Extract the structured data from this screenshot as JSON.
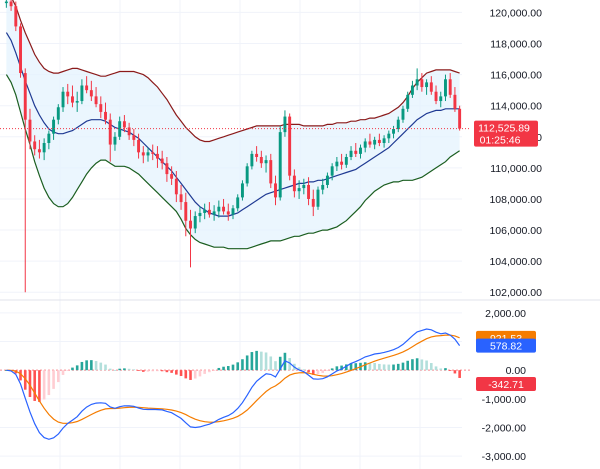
{
  "chart_data": [
    {
      "type": "candlestick",
      "title": "",
      "ylim": [
        101500,
        120800
      ],
      "y_ticks": [
        "120,000.00",
        "118,000.00",
        "116,000.00",
        "114,000.00",
        "112,000.00",
        "110,000.00",
        "108,000.00",
        "106,000.00",
        "104,000.00",
        "102,000.00"
      ],
      "y_tick_values": [
        120000,
        118000,
        116000,
        114000,
        112000,
        110000,
        108000,
        106000,
        104000,
        102000
      ],
      "last_price": 112525.89,
      "last_price_label": "112,525.89",
      "countdown_label": "01:25:46",
      "colors": {
        "up": "#089981",
        "down": "#f23645",
        "band_fill": "#e3f2fd",
        "upper_band": "#8b1a1a",
        "lower_band": "#1b5e20",
        "basis": "#1f3a93",
        "price_line": "#f23645"
      },
      "candles": [
        [
          120600,
          121000,
          120300,
          120700
        ],
        [
          120700,
          121000,
          120100,
          120400
        ],
        [
          120400,
          120700,
          118800,
          119100
        ],
        [
          119100,
          119300,
          115800,
          116100
        ],
        [
          116100,
          116400,
          102000,
          113100
        ],
        [
          113100,
          113800,
          111200,
          111700
        ],
        [
          111700,
          112100,
          110800,
          111200
        ],
        [
          111200,
          111800,
          110600,
          111000
        ],
        [
          111000,
          111900,
          110500,
          111600
        ],
        [
          111600,
          112400,
          111200,
          112200
        ],
        [
          112200,
          113300,
          111800,
          113100
        ],
        [
          113100,
          114100,
          112800,
          113900
        ],
        [
          113900,
          115200,
          113600,
          114900
        ],
        [
          114900,
          115400,
          114100,
          114600
        ],
        [
          114600,
          115300,
          113900,
          114200
        ],
        [
          114200,
          114900,
          113600,
          114300
        ],
        [
          114300,
          115700,
          114100,
          115300
        ],
        [
          115300,
          115900,
          114800,
          115000
        ],
        [
          115000,
          115600,
          114300,
          114600
        ],
        [
          114600,
          115200,
          113900,
          114100
        ],
        [
          114100,
          114600,
          113200,
          113600
        ],
        [
          113600,
          114200,
          112800,
          113100
        ],
        [
          113100,
          113500,
          110400,
          111500
        ],
        [
          111500,
          112300,
          111100,
          112000
        ],
        [
          112000,
          113300,
          111800,
          113000
        ],
        [
          113000,
          113400,
          112300,
          112600
        ],
        [
          112600,
          112900,
          111800,
          112100
        ],
        [
          112100,
          112500,
          111400,
          111800
        ],
        [
          111800,
          112200,
          110600,
          111000
        ],
        [
          111000,
          111400,
          110300,
          110800
        ],
        [
          110800,
          111300,
          110400,
          111000
        ],
        [
          111000,
          111500,
          110500,
          110900
        ],
        [
          110900,
          111400,
          110000,
          110600
        ],
        [
          110600,
          111100,
          109900,
          110300
        ],
        [
          110300,
          110700,
          109100,
          109600
        ],
        [
          109600,
          110100,
          108900,
          109300
        ],
        [
          109300,
          109800,
          107800,
          108300
        ],
        [
          108300,
          108900,
          107300,
          107800
        ],
        [
          107800,
          108400,
          105600,
          106600
        ],
        [
          106600,
          107300,
          103600,
          106100
        ],
        [
          106100,
          107200,
          105800,
          106900
        ],
        [
          106900,
          107500,
          106500,
          107100
        ],
        [
          107100,
          107700,
          106700,
          107300
        ],
        [
          107300,
          107800,
          106800,
          107000
        ],
        [
          107000,
          107600,
          106600,
          107200
        ],
        [
          107200,
          107900,
          106800,
          107500
        ],
        [
          107500,
          108000,
          107000,
          107200
        ],
        [
          107200,
          107700,
          106600,
          107000
        ],
        [
          107000,
          107600,
          106700,
          107400
        ],
        [
          107400,
          108300,
          107200,
          108100
        ],
        [
          108100,
          109200,
          107900,
          109000
        ],
        [
          109000,
          110300,
          108800,
          110100
        ],
        [
          110100,
          111100,
          109900,
          110900
        ],
        [
          110900,
          111400,
          110400,
          110700
        ],
        [
          110700,
          111100,
          110000,
          110300
        ],
        [
          110300,
          110800,
          109700,
          110500
        ],
        [
          110500,
          110900,
          108700,
          109000
        ],
        [
          109000,
          109500,
          107600,
          108100
        ],
        [
          108100,
          112700,
          107900,
          112300
        ],
        [
          112300,
          113700,
          112000,
          113300
        ],
        [
          113300,
          113500,
          109200,
          109500
        ],
        [
          109500,
          109900,
          108100,
          108500
        ],
        [
          108500,
          109200,
          108000,
          108700
        ],
        [
          108700,
          109300,
          108300,
          108900
        ],
        [
          108900,
          109400,
          107600,
          108000
        ],
        [
          108000,
          108600,
          106900,
          107500
        ],
        [
          107500,
          108800,
          107300,
          108600
        ],
        [
          108600,
          109300,
          108300,
          108900
        ],
        [
          108900,
          109700,
          108700,
          109500
        ],
        [
          109500,
          110300,
          109200,
          110100
        ],
        [
          110100,
          110700,
          109800,
          110400
        ],
        [
          110400,
          110900,
          109900,
          110200
        ],
        [
          110200,
          110900,
          110000,
          110700
        ],
        [
          110700,
          111400,
          110500,
          111100
        ],
        [
          111100,
          111600,
          110700,
          110900
        ],
        [
          110900,
          111500,
          110600,
          111300
        ],
        [
          111300,
          111900,
          111000,
          111700
        ],
        [
          111700,
          112200,
          111300,
          111500
        ],
        [
          111500,
          112000,
          111200,
          111800
        ],
        [
          111800,
          112200,
          111400,
          111600
        ],
        [
          111600,
          112100,
          111300,
          111900
        ],
        [
          111900,
          112400,
          111600,
          112200
        ],
        [
          112200,
          112700,
          111900,
          112500
        ],
        [
          112500,
          113300,
          112300,
          113100
        ],
        [
          113100,
          114000,
          112900,
          113800
        ],
        [
          113800,
          114900,
          113600,
          114700
        ],
        [
          114700,
          115600,
          114500,
          115300
        ],
        [
          115300,
          116400,
          115000,
          115700
        ],
        [
          115700,
          116100,
          114900,
          115200
        ],
        [
          115200,
          115700,
          114700,
          115500
        ],
        [
          115500,
          115900,
          114700,
          114900
        ],
        [
          114900,
          115300,
          114100,
          114300
        ],
        [
          114300,
          114900,
          113900,
          114600
        ],
        [
          114600,
          116000,
          114300,
          115700
        ],
        [
          115700,
          116100,
          114500,
          114700
        ],
        [
          114700,
          115200,
          113600,
          113800
        ],
        [
          113800,
          114000,
          112400,
          112526
        ]
      ],
      "upper_band": [
        121500,
        121000,
        120400,
        119500,
        118700,
        118000,
        117300,
        116800,
        116400,
        116200,
        116100,
        116100,
        116200,
        116300,
        116400,
        116400,
        116300,
        116200,
        116100,
        116000,
        115900,
        115900,
        116000,
        116100,
        116200,
        116200,
        116200,
        116200,
        116100,
        116000,
        115800,
        115500,
        115200,
        114800,
        114400,
        113900,
        113400,
        113000,
        112600,
        112300,
        112000,
        111800,
        111700,
        111700,
        111800,
        111900,
        112000,
        112100,
        112200,
        112300,
        112400,
        112500,
        112600,
        112700,
        112700,
        112700,
        112700,
        112700,
        112700,
        112800,
        112800,
        112800,
        112800,
        112700,
        112700,
        112700,
        112700,
        112700,
        112800,
        112800,
        112900,
        112900,
        112900,
        113000,
        113000,
        113100,
        113100,
        113200,
        113200,
        113300,
        113400,
        113500,
        113700,
        113900,
        114200,
        114600,
        115100,
        115500,
        115800,
        116100,
        116200,
        116300,
        116300,
        116300,
        116300,
        116200,
        116100
      ],
      "lower_band": [
        116000,
        115500,
        114700,
        113600,
        112500,
        111500,
        110400,
        109500,
        108700,
        108100,
        107700,
        107500,
        107500,
        107700,
        108100,
        108600,
        109100,
        109600,
        110000,
        110300,
        110500,
        110500,
        110300,
        110100,
        110100,
        110100,
        110000,
        109800,
        109600,
        109300,
        109000,
        108700,
        108400,
        108100,
        107800,
        107500,
        107200,
        106700,
        106100,
        105700,
        105400,
        105200,
        105100,
        105000,
        104900,
        104900,
        104900,
        104800,
        104800,
        104800,
        104800,
        104800,
        104900,
        105000,
        105100,
        105200,
        105300,
        105300,
        105300,
        105400,
        105500,
        105600,
        105600,
        105700,
        105800,
        105800,
        105900,
        106000,
        106000,
        106100,
        106200,
        106400,
        106600,
        106900,
        107200,
        107500,
        107900,
        108200,
        108500,
        108700,
        108900,
        109000,
        109100,
        109100,
        109200,
        109200,
        109200,
        109300,
        109400,
        109600,
        109800,
        110000,
        110200,
        110400,
        110700,
        110900,
        111100
      ],
      "basis": [
        118700,
        118200,
        117400,
        116500,
        115600,
        114800,
        114000,
        113400,
        112900,
        112500,
        112300,
        112200,
        112200,
        112300,
        112400,
        112600,
        112800,
        113000,
        113100,
        113100,
        113100,
        113000,
        112800,
        112600,
        112500,
        112400,
        112300,
        112100,
        111900,
        111600,
        111300,
        111000,
        110700,
        110400,
        110100,
        109800,
        109400,
        109000,
        108600,
        108200,
        107800,
        107500,
        107300,
        107100,
        107000,
        106900,
        106900,
        106900,
        107000,
        107100,
        107300,
        107500,
        107700,
        107900,
        108100,
        108300,
        108400,
        108500,
        108600,
        108700,
        108800,
        108900,
        109000,
        109000,
        109100,
        109100,
        109200,
        109200,
        109300,
        109400,
        109500,
        109600,
        109700,
        109800,
        109900,
        110100,
        110300,
        110500,
        110700,
        110900,
        111100,
        111300,
        111600,
        111900,
        112200,
        112500,
        112800,
        113100,
        113300,
        113500,
        113600,
        113700,
        113700,
        113800,
        113800,
        113800,
        113800
      ]
    },
    {
      "type": "macd",
      "ylim": [
        -3450,
        2450
      ],
      "y_ticks": [
        "2,000.00",
        "1,000.00",
        "0.00",
        "-1,000.00",
        "-2,000.00",
        "-3,000.00"
      ],
      "y_tick_values": [
        2000,
        1000,
        0,
        -1000,
        -2000,
        -3000
      ],
      "signal_label": "921.53",
      "macd_label": "578.82",
      "hist_label": "-342.71",
      "colors": {
        "signal": "#f57c00",
        "macd": "#2962ff",
        "hist_pos_strong": "#26a69a",
        "hist_pos_weak": "#b2dfdb",
        "hist_neg_strong": "#ff5252",
        "hist_neg_weak": "#ffcdd2",
        "zero": "#f23645"
      }
    }
  ]
}
